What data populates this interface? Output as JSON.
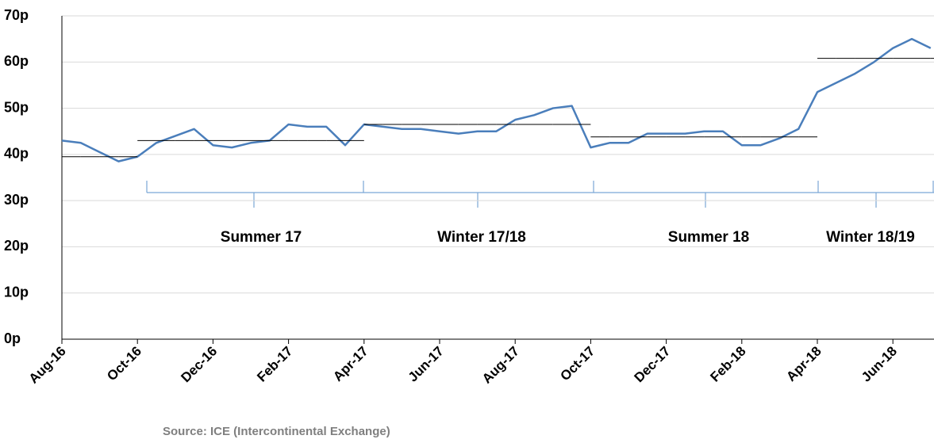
{
  "chart_data": {
    "type": "line",
    "categories": [
      "Aug-16",
      null,
      null,
      null,
      "Oct-16",
      null,
      null,
      null,
      "Dec-16",
      null,
      null,
      null,
      "Feb-17",
      null,
      null,
      null,
      "Apr-17",
      null,
      null,
      null,
      "Jun-17",
      null,
      null,
      null,
      "Aug-17",
      null,
      null,
      null,
      "Oct-17",
      null,
      null,
      null,
      "Dec-17",
      null,
      null,
      null,
      "Feb-18",
      null,
      null,
      null,
      "Apr-18",
      null,
      null,
      null,
      "Jun-18",
      null,
      null
    ],
    "series": [
      {
        "color": "#4a7ebb",
        "values": [
          43,
          42.5,
          40.5,
          38.5,
          39.5,
          42.5,
          44,
          45.5,
          42,
          41.5,
          42.5,
          43,
          46.5,
          46,
          46,
          42,
          46.5,
          46,
          45.5,
          45.5,
          45,
          44.5,
          45,
          45,
          47.5,
          48.5,
          50,
          50.5,
          41.5,
          42.5,
          42.5,
          44.5,
          44.5,
          44.5,
          45,
          45,
          42,
          42,
          43.5,
          45.5,
          53.5,
          55.5,
          57.5,
          60,
          63,
          65,
          63
        ]
      },
      {
        "color": "#000000",
        "style": "step",
        "values": [
          39.5,
          39.5,
          39.5,
          39.5,
          43,
          43,
          43,
          43,
          43,
          43,
          43,
          43,
          43,
          43,
          43,
          43,
          46.5,
          46.5,
          46.5,
          46.5,
          46.5,
          46.5,
          46.5,
          46.5,
          46.5,
          46.5,
          46.5,
          46.5,
          43.8,
          43.8,
          43.8,
          43.8,
          43.8,
          43.8,
          43.8,
          43.8,
          43.8,
          43.8,
          43.8,
          43.8,
          60.8,
          60.8,
          60.8,
          60.8,
          60.8,
          60.8,
          60.8
        ]
      }
    ],
    "ylim": [
      0,
      70
    ],
    "yticks": [
      {
        "value": 0,
        "label": "0p"
      },
      {
        "value": 10,
        "label": "10p"
      },
      {
        "value": 20,
        "label": "20p"
      },
      {
        "value": 30,
        "label": "30p"
      },
      {
        "value": 40,
        "label": "40p"
      },
      {
        "value": 50,
        "label": "50p"
      },
      {
        "value": 60,
        "label": "60p"
      },
      {
        "value": 70,
        "label": "70p"
      }
    ],
    "grid": true,
    "annotations": [
      "Summer 17",
      "Winter 17/18",
      "Summer 18",
      "Winter 18/19"
    ],
    "source": "Source: ICE (Intercontinental Exchange)"
  }
}
